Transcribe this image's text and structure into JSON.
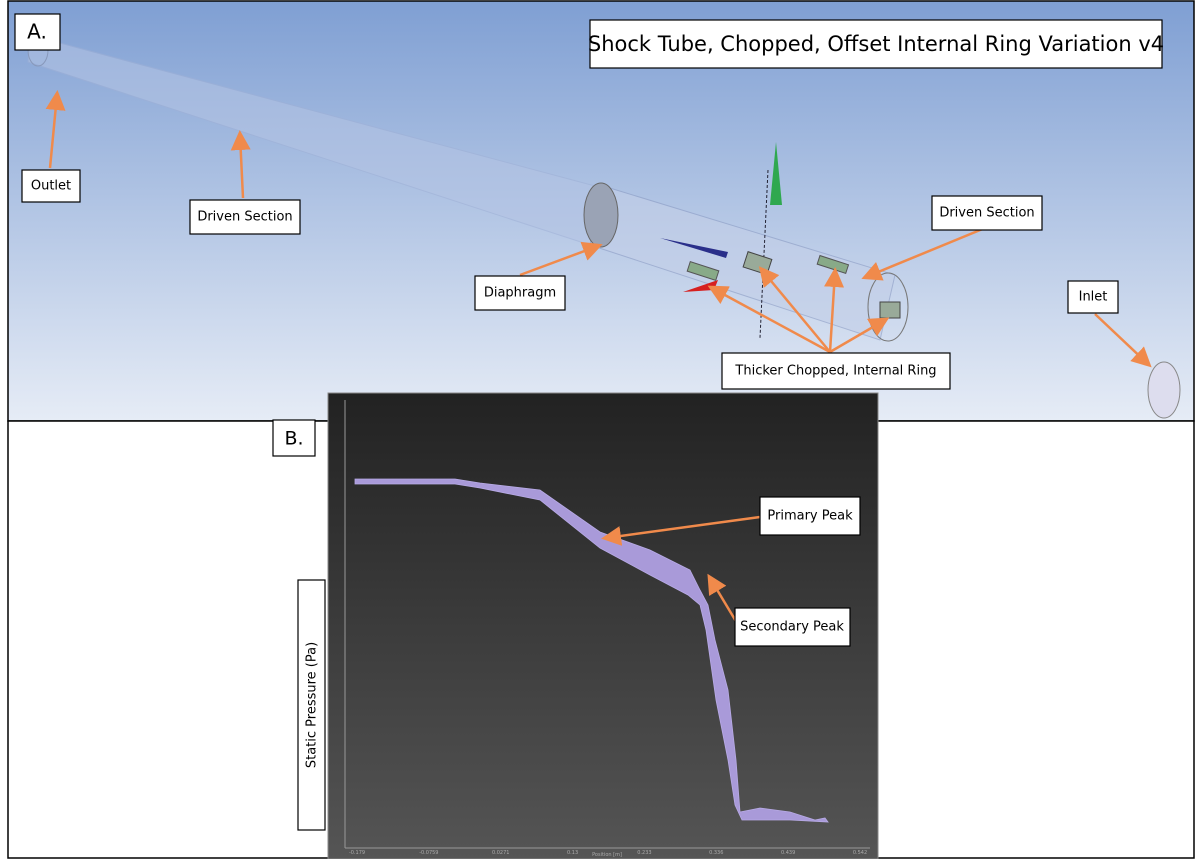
{
  "panel_a": {
    "label": "A.",
    "title": "Shock Tube, Chopped, Offset Internal Ring Variation v4",
    "callouts": [
      "Outlet",
      "Driven Section",
      "Driven Section",
      "Diaphragm",
      "Inlet",
      "Thicker Chopped, Internal Ring"
    ]
  },
  "panel_b": {
    "label": "B.",
    "y_label": "Static Pressure (Pa)",
    "x_label": "Position [m]",
    "x_ticks": [
      "-0.179",
      "-0.0759",
      "0.0271",
      "0.13",
      "0.233",
      "0.336",
      "0.439",
      "0.542"
    ],
    "callouts": [
      "Primary Peak",
      "Secondary Peak"
    ]
  }
}
